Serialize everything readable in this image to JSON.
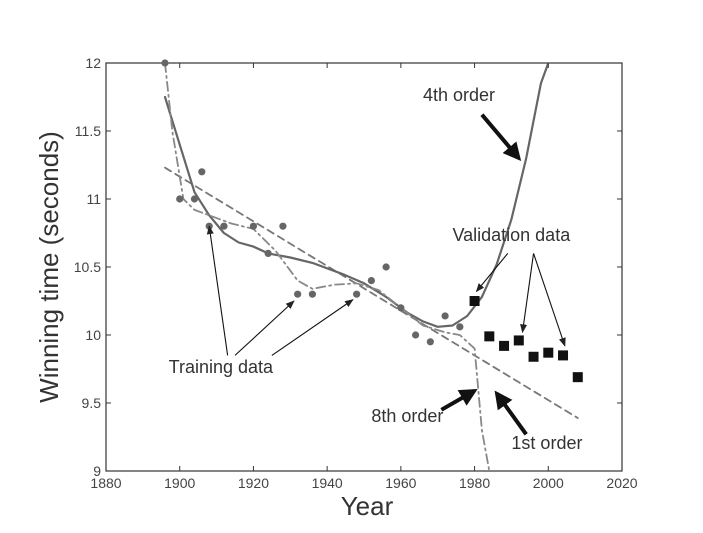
{
  "chart_data": {
    "type": "scatter",
    "xlabel": "Year",
    "ylabel": "Winning time (seconds)",
    "xlim": [
      1880,
      2020
    ],
    "ylim": [
      9,
      12
    ],
    "xticks": [
      1880,
      1900,
      1920,
      1940,
      1960,
      1980,
      2000,
      2020
    ],
    "yticks": [
      9,
      9.5,
      10,
      10.5,
      11,
      11.5,
      12
    ],
    "grid": false,
    "series": [
      {
        "name": "Training data",
        "kind": "points",
        "marker": "circle",
        "color": "#666666",
        "points": [
          [
            1896,
            12.0
          ],
          [
            1900,
            11.0
          ],
          [
            1904,
            11.0
          ],
          [
            1906,
            11.2
          ],
          [
            1908,
            10.8
          ],
          [
            1912,
            10.8
          ],
          [
            1920,
            10.8
          ],
          [
            1924,
            10.6
          ],
          [
            1928,
            10.8
          ],
          [
            1932,
            10.3
          ],
          [
            1936,
            10.3
          ],
          [
            1948,
            10.3
          ],
          [
            1952,
            10.4
          ],
          [
            1956,
            10.5
          ],
          [
            1960,
            10.2
          ],
          [
            1964,
            10.0
          ],
          [
            1968,
            9.95
          ],
          [
            1972,
            10.14
          ],
          [
            1976,
            10.06
          ]
        ]
      },
      {
        "name": "Validation data",
        "kind": "points",
        "marker": "square",
        "color": "#111111",
        "points": [
          [
            1980,
            10.25
          ],
          [
            1984,
            9.99
          ],
          [
            1988,
            9.92
          ],
          [
            1992,
            9.96
          ],
          [
            1996,
            9.84
          ],
          [
            2000,
            9.87
          ],
          [
            2004,
            9.85
          ],
          [
            2008,
            9.69
          ]
        ]
      },
      {
        "name": "1st order",
        "kind": "line",
        "style": "dashed",
        "color": "#777777",
        "points": [
          [
            1896,
            11.23
          ],
          [
            2008,
            9.39
          ]
        ]
      },
      {
        "name": "4th order",
        "kind": "line",
        "style": "solid",
        "color": "#666666",
        "points": [
          [
            1896,
            11.75
          ],
          [
            1900,
            11.4
          ],
          [
            1904,
            11.05
          ],
          [
            1908,
            10.88
          ],
          [
            1912,
            10.75
          ],
          [
            1916,
            10.68
          ],
          [
            1920,
            10.65
          ],
          [
            1924,
            10.6
          ],
          [
            1930,
            10.57
          ],
          [
            1936,
            10.53
          ],
          [
            1944,
            10.45
          ],
          [
            1950,
            10.38
          ],
          [
            1956,
            10.28
          ],
          [
            1962,
            10.16
          ],
          [
            1966,
            10.1
          ],
          [
            1970,
            10.06
          ],
          [
            1974,
            10.07
          ],
          [
            1978,
            10.14
          ],
          [
            1982,
            10.28
          ],
          [
            1986,
            10.52
          ],
          [
            1990,
            10.85
          ],
          [
            1994,
            11.3
          ],
          [
            1998,
            11.85
          ],
          [
            2000,
            12.0
          ]
        ]
      },
      {
        "name": "8th order",
        "kind": "line",
        "style": "dashdot",
        "color": "#888888",
        "points": [
          [
            1896,
            12.0
          ],
          [
            1898,
            11.5
          ],
          [
            1901,
            11.0
          ],
          [
            1904,
            10.92
          ],
          [
            1908,
            10.88
          ],
          [
            1914,
            10.82
          ],
          [
            1920,
            10.78
          ],
          [
            1926,
            10.62
          ],
          [
            1932,
            10.4
          ],
          [
            1936,
            10.34
          ],
          [
            1942,
            10.37
          ],
          [
            1948,
            10.38
          ],
          [
            1954,
            10.33
          ],
          [
            1960,
            10.2
          ],
          [
            1966,
            10.07
          ],
          [
            1972,
            10.02
          ],
          [
            1976,
            10.0
          ],
          [
            1980,
            9.9
          ],
          [
            1982,
            9.3
          ],
          [
            1984,
            9.0
          ]
        ]
      }
    ],
    "annotations": [
      {
        "text": "4th order",
        "text_at": [
          1966,
          11.72
        ],
        "arrows": [
          {
            "from": [
              1982,
              11.62
            ],
            "to": [
              1992,
              11.3
            ],
            "style": "bold"
          }
        ]
      },
      {
        "text": "Validation data",
        "text_at": [
          1974,
          10.69
        ],
        "arrows": [
          {
            "from": [
              1989,
              10.6
            ],
            "to": [
              1980.5,
              10.32
            ],
            "style": "thin"
          },
          {
            "from": [
              1996,
              10.6
            ],
            "to": [
              1993,
              10.02
            ],
            "style": "thin"
          },
          {
            "from": [
              1996,
              10.6
            ],
            "to": [
              2004.5,
              9.92
            ],
            "style": "thin"
          }
        ]
      },
      {
        "text": "Training data",
        "text_at": [
          1897,
          9.72
        ],
        "arrows": [
          {
            "from": [
              1913,
              9.85
            ],
            "to": [
              1908,
              10.8
            ],
            "style": "thin"
          },
          {
            "from": [
              1915,
              9.85
            ],
            "to": [
              1931,
              10.25
            ],
            "style": "thin"
          },
          {
            "from": [
              1925,
              9.85
            ],
            "to": [
              1947,
              10.26
            ],
            "style": "thin"
          }
        ]
      },
      {
        "text": "8th order",
        "text_at": [
          1952,
          9.36
        ],
        "arrows": [
          {
            "from": [
              1971,
              9.45
            ],
            "to": [
              1980,
              9.59
            ],
            "style": "bold"
          }
        ]
      },
      {
        "text": "1st order",
        "text_at": [
          1990,
          9.16
        ],
        "arrows": [
          {
            "from": [
              1994,
              9.27
            ],
            "to": [
              1986,
              9.57
            ],
            "style": "bold"
          }
        ]
      }
    ]
  }
}
